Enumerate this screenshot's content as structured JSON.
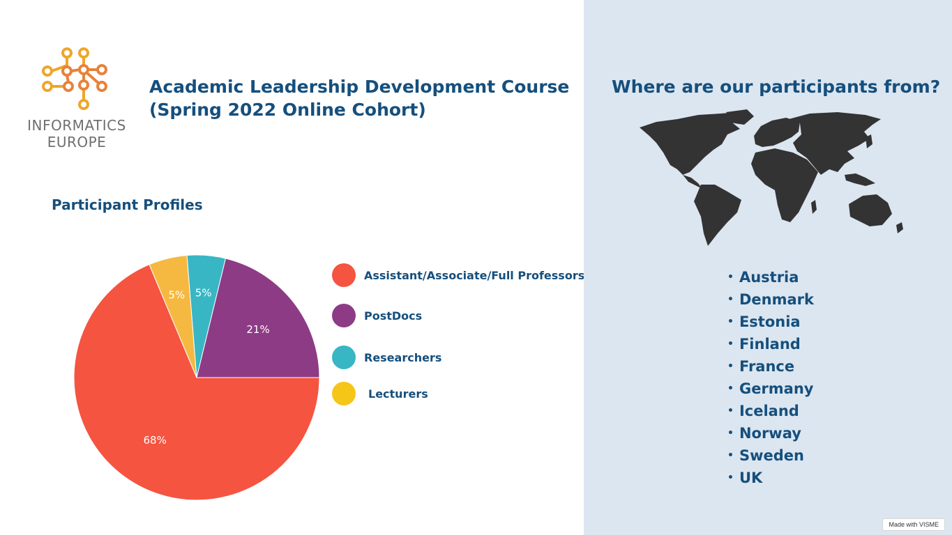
{
  "logo": {
    "line1": "INFORMATICS",
    "line2": "EUROPE"
  },
  "title_line1": "Academic Leadership Development Course",
  "title_line2": "(Spring 2022 Online Cohort)",
  "section_title": "Participant Profiles",
  "chart_data": {
    "type": "pie",
    "categories": [
      "Assistant/Associate/Full Professors",
      "PostDocs",
      "Researchers",
      "Lecturers"
    ],
    "values": [
      68,
      21,
      5,
      5
    ],
    "value_labels": [
      "68%",
      "21%",
      "5%",
      "5%"
    ],
    "slice_colors": [
      "#f55440",
      "#8e3b86",
      "#38b6c4",
      "#f5b942"
    ],
    "legend_colors": [
      "#f55440",
      "#8e3b86",
      "#38b6c4",
      "#f5c518"
    ],
    "legend": "right"
  },
  "map_title": "Where are our participants from?",
  "countries": [
    "Austria",
    "Denmark",
    "Estonia",
    "Finland",
    "France",
    "Germany",
    "Iceland",
    "Norway",
    "Sweden",
    "UK"
  ],
  "bullet": "•",
  "badge": "Made with VISME",
  "colors": {
    "heading": "#154f7d",
    "right_panel": "#dce6f0",
    "map": "#333333"
  }
}
